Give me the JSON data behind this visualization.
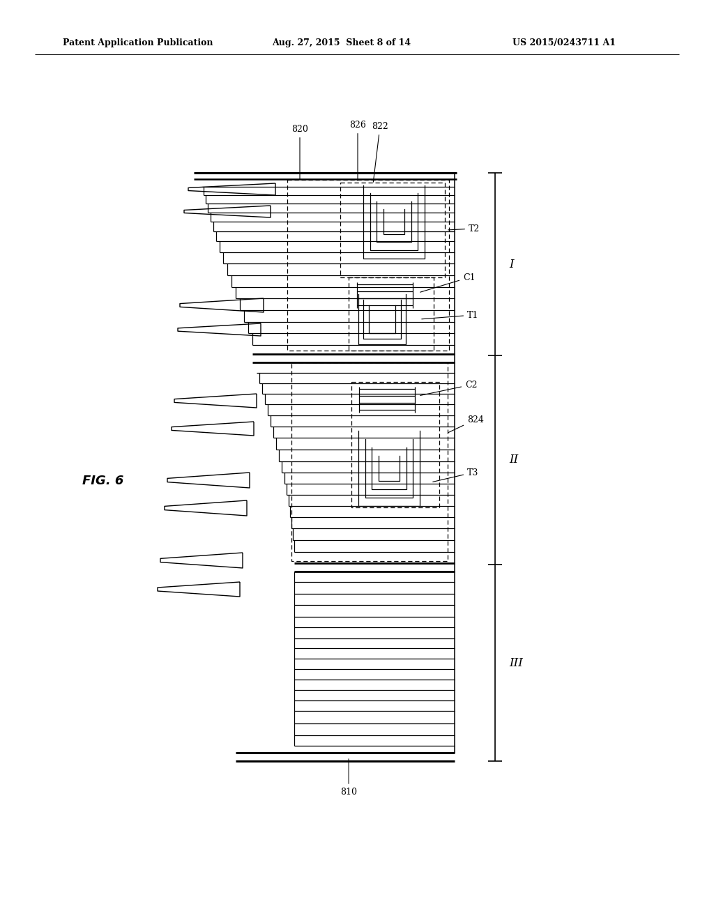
{
  "header_left": "Patent Application Publication",
  "header_center": "Aug. 27, 2015  Sheet 8 of 14",
  "header_right": "US 2015/0243711 A1",
  "fig_label": "FIG. 6",
  "bg_color": "#ffffff"
}
